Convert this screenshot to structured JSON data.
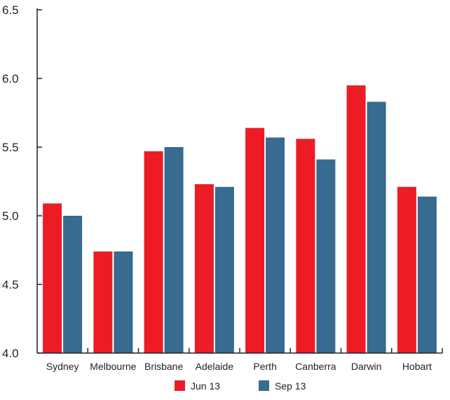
{
  "chart_data": {
    "type": "bar",
    "categories": [
      "Sydney",
      "Melbourne",
      "Brisbane",
      "Adelaide",
      "Perth",
      "Canberra",
      "Darwin",
      "Hobart"
    ],
    "series": [
      {
        "name": "Jun 13",
        "color": "#ed1c24",
        "values": [
          5.09,
          4.74,
          5.47,
          5.23,
          5.64,
          5.56,
          5.95,
          5.21
        ]
      },
      {
        "name": "Sep 13",
        "color": "#376b8f",
        "values": [
          5.0,
          4.74,
          5.5,
          5.21,
          5.57,
          5.41,
          5.83,
          5.14
        ]
      }
    ],
    "ylim": [
      4.0,
      6.5
    ],
    "yticks": [
      "4.0",
      "4.5",
      "5.0",
      "5.5",
      "6.0",
      "6.5"
    ],
    "title": "",
    "xlabel": "",
    "ylabel": "",
    "grid": false,
    "legend_position": "bottom-center"
  }
}
